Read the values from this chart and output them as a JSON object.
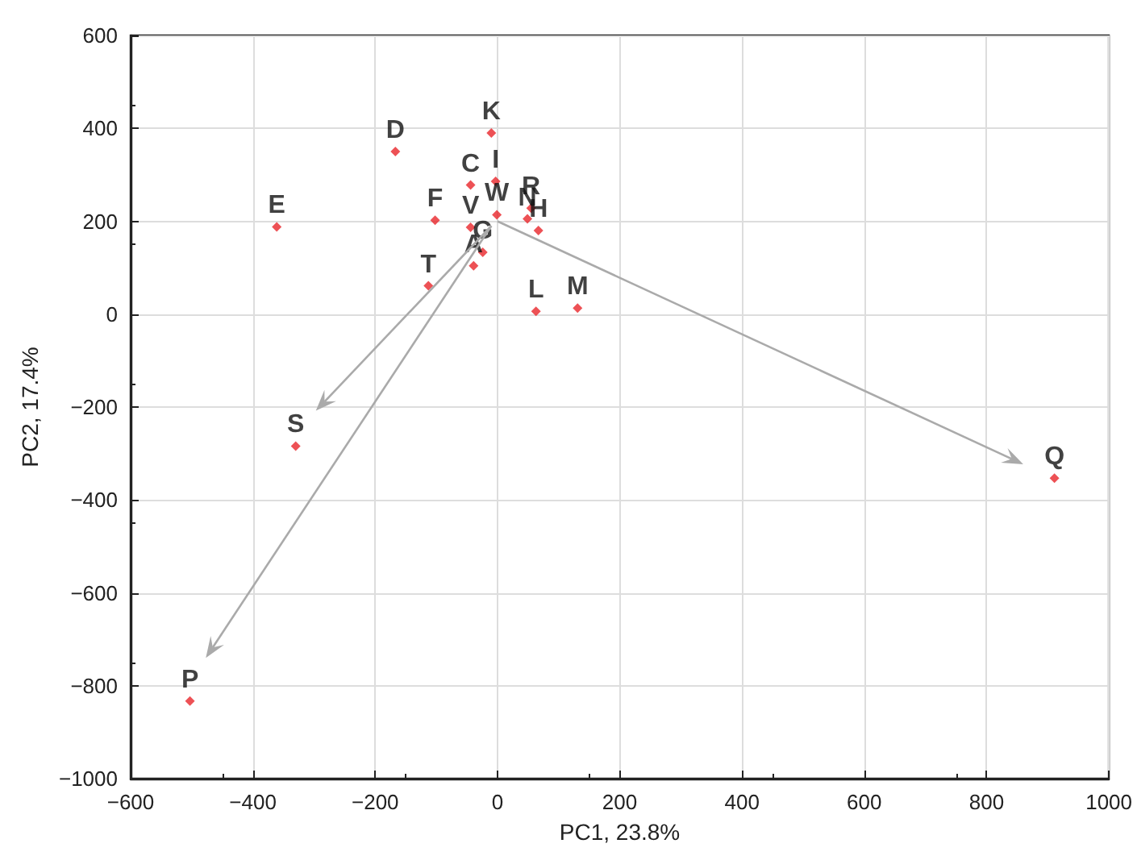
{
  "chart_data": {
    "type": "scatter",
    "xlabel": "PC1, 23.8%",
    "ylabel": "PC2, 17.4%",
    "xlim": [
      -600,
      1000
    ],
    "xticks": [
      {
        "value": -600,
        "label": "−600"
      },
      {
        "value": -400,
        "label": "−400"
      },
      {
        "value": -200,
        "label": "−200"
      },
      0,
      200,
      400,
      600,
      800,
      1000
    ],
    "ylim": [
      -1000,
      600
    ],
    "yticks": [
      {
        "value": -1000,
        "label": "−1000"
      },
      {
        "value": -800,
        "label": "−800"
      },
      {
        "value": -600,
        "label": "−600"
      },
      {
        "value": -400,
        "label": "−400"
      },
      {
        "value": -200,
        "label": "−200"
      },
      0,
      200,
      400,
      600
    ],
    "grid": true,
    "marker": "diamond",
    "series": [
      {
        "color": "#e8262a",
        "x": [
          -10,
          -167,
          -44,
          -3,
          49,
          -102,
          -44,
          -1,
          55,
          67,
          -361,
          -24,
          -39,
          -113,
          63,
          131,
          -330,
          -503,
          911
        ],
        "values": [
          390,
          350,
          278,
          286,
          205,
          202,
          187,
          214,
          228,
          180,
          188,
          133,
          104,
          61,
          6,
          13,
          -284,
          -833,
          -353
        ],
        "value_labels": [
          "K",
          "D",
          "C",
          "I",
          "N",
          "F",
          "V",
          "W",
          "R",
          "H",
          "E",
          "G",
          "A",
          "T",
          "L",
          "M",
          "S",
          "P",
          "Q"
        ]
      }
    ]
  }
}
